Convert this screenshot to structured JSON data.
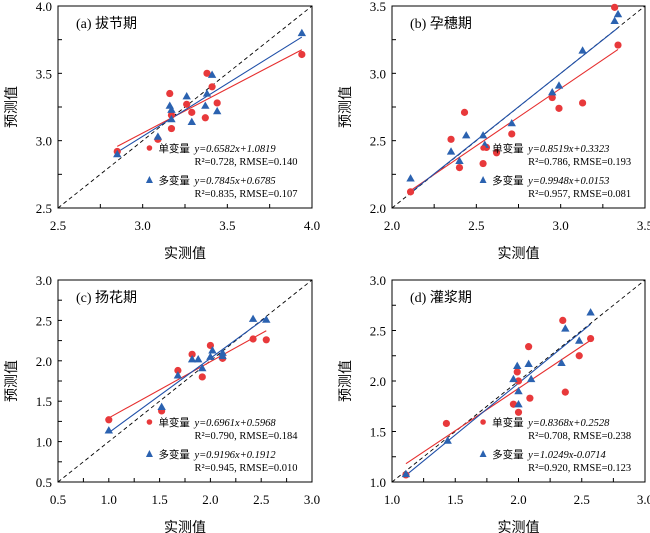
{
  "colors": {
    "single": "#e8393b",
    "multi": "#2b62b0",
    "identity": "#000000",
    "single_line": "#e62e2e",
    "multi_line": "#1f4fa8"
  },
  "chart_data": [
    {
      "type": "scatter",
      "title": "(a) 拔节期",
      "xlabel": "实测值",
      "ylabel": "预测值",
      "xlim": [
        2.5,
        4.0
      ],
      "ylim": [
        2.5,
        4.0
      ],
      "xticks": [
        "2.5",
        "3.0",
        "3.5",
        "4.0"
      ],
      "xtick_values": [
        2.5,
        3.0,
        3.5,
        4.0
      ],
      "yticks": [
        "2.5",
        "3.0",
        "3.5",
        "4.0"
      ],
      "ytick_values": [
        2.5,
        3.0,
        3.5,
        4.0
      ],
      "minor_step": 0.25,
      "legend_position": "bottom-right",
      "series": [
        {
          "name": "单变量",
          "marker": "circle",
          "equation": "y=0.6582x+1.0819",
          "stats": "R²=0.728, RMSE=0.140",
          "slope": 0.6582,
          "intercept": 1.0819,
          "fit_range": [
            2.85,
            3.94
          ],
          "points": [
            [
              2.85,
              2.92
            ],
            [
              3.09,
              3.01
            ],
            [
              3.16,
              3.35
            ],
            [
              3.17,
              3.19
            ],
            [
              3.17,
              3.09
            ],
            [
              3.26,
              3.27
            ],
            [
              3.29,
              3.21
            ],
            [
              3.37,
              3.17
            ],
            [
              3.38,
              3.5
            ],
            [
              3.41,
              3.4
            ],
            [
              3.44,
              3.28
            ],
            [
              3.94,
              3.64
            ]
          ]
        },
        {
          "name": "多变量",
          "marker": "triangle",
          "equation": "y=0.7845x+0.6785",
          "stats": "R²=0.835, RMSE=0.107",
          "slope": 0.7845,
          "intercept": 0.6785,
          "fit_range": [
            2.85,
            3.94
          ],
          "points": [
            [
              2.85,
              2.9
            ],
            [
              3.09,
              3.03
            ],
            [
              3.16,
              3.26
            ],
            [
              3.17,
              3.23
            ],
            [
              3.17,
              3.16
            ],
            [
              3.26,
              3.33
            ],
            [
              3.29,
              3.14
            ],
            [
              3.37,
              3.26
            ],
            [
              3.38,
              3.35
            ],
            [
              3.41,
              3.49
            ],
            [
              3.44,
              3.22
            ],
            [
              3.94,
              3.8
            ]
          ]
        }
      ]
    },
    {
      "type": "scatter",
      "title": "(b) 孕穗期",
      "xlabel": "实测值",
      "ylabel": "预测值",
      "xlim": [
        2.0,
        3.5
      ],
      "ylim": [
        2.0,
        3.5
      ],
      "xticks": [
        "2.0",
        "2.5",
        "3.0",
        "3.5"
      ],
      "xtick_values": [
        2.0,
        2.5,
        3.0,
        3.5
      ],
      "yticks": [
        "2.0",
        "2.5",
        "3.0",
        "3.5"
      ],
      "ytick_values": [
        2.0,
        2.5,
        3.0,
        3.5
      ],
      "minor_step": 0.25,
      "legend_position": "bottom-right",
      "series": [
        {
          "name": "单变量",
          "marker": "circle",
          "equation": "y=0.8519x+0.3323",
          "stats": "R²=0.786, RMSE=0.193",
          "slope": 0.8519,
          "intercept": 0.3323,
          "fit_range": [
            2.11,
            3.34
          ],
          "points": [
            [
              2.11,
              2.12
            ],
            [
              2.35,
              2.51
            ],
            [
              2.4,
              2.3
            ],
            [
              2.43,
              2.71
            ],
            [
              2.54,
              2.33
            ],
            [
              2.56,
              2.45
            ],
            [
              2.62,
              2.41
            ],
            [
              2.71,
              2.55
            ],
            [
              2.95,
              2.82
            ],
            [
              2.99,
              2.74
            ],
            [
              3.13,
              2.78
            ],
            [
              3.32,
              3.49
            ],
            [
              3.34,
              3.21
            ]
          ]
        },
        {
          "name": "多变量",
          "marker": "triangle",
          "equation": "y=0.9948x+0.0153",
          "stats": "R²=0.957, RMSE=0.081",
          "slope": 0.9948,
          "intercept": 0.0153,
          "fit_range": [
            2.11,
            3.34
          ],
          "points": [
            [
              2.11,
              2.22
            ],
            [
              2.35,
              2.42
            ],
            [
              2.4,
              2.35
            ],
            [
              2.44,
              2.54
            ],
            [
              2.54,
              2.54
            ],
            [
              2.55,
              2.47
            ],
            [
              2.71,
              2.63
            ],
            [
              2.95,
              2.86
            ],
            [
              2.99,
              2.91
            ],
            [
              3.13,
              3.17
            ],
            [
              3.32,
              3.39
            ],
            [
              3.34,
              3.44
            ]
          ]
        }
      ]
    },
    {
      "type": "scatter",
      "title": "(c) 扬花期",
      "xlabel": "实测值",
      "ylabel": "预测值",
      "xlim": [
        0.5,
        3.0
      ],
      "ylim": [
        0.5,
        3.0
      ],
      "xticks": [
        "0.5",
        "1.0",
        "1.5",
        "2.0",
        "2.5",
        "3.0"
      ],
      "xtick_values": [
        0.5,
        1.0,
        1.5,
        2.0,
        2.5,
        3.0
      ],
      "yticks": [
        "0.5",
        "1.0",
        "1.5",
        "2.0",
        "2.5",
        "3.0"
      ],
      "ytick_values": [
        0.5,
        1.0,
        1.5,
        2.0,
        2.5,
        3.0
      ],
      "minor_step": 0.25,
      "legend_position": "bottom-right",
      "series": [
        {
          "name": "单变量",
          "marker": "circle",
          "equation": "y=0.6961x+0.5968",
          "stats": "R²=0.790, RMSE=0.184",
          "slope": 0.6961,
          "intercept": 0.5968,
          "fit_range": [
            1.0,
            2.55
          ],
          "points": [
            [
              1.0,
              1.27
            ],
            [
              1.52,
              1.38
            ],
            [
              1.68,
              1.88
            ],
            [
              1.82,
              2.08
            ],
            [
              1.92,
              1.8
            ],
            [
              2.0,
              2.19
            ],
            [
              2.12,
              2.03
            ],
            [
              2.42,
              2.27
            ],
            [
              2.55,
              2.26
            ]
          ]
        },
        {
          "name": "多变量",
          "marker": "triangle",
          "equation": "y=0.9196x+0.1912",
          "stats": "R²=0.945, RMSE=0.010",
          "slope": 0.9196,
          "intercept": 0.1912,
          "fit_range": [
            1.0,
            2.55
          ],
          "points": [
            [
              1.0,
              1.14
            ],
            [
              1.52,
              1.43
            ],
            [
              1.68,
              1.82
            ],
            [
              1.82,
              2.02
            ],
            [
              1.88,
              2.02
            ],
            [
              1.92,
              1.91
            ],
            [
              2.0,
              2.05
            ],
            [
              2.02,
              2.13
            ],
            [
              2.12,
              2.06
            ],
            [
              2.12,
              2.1
            ],
            [
              2.42,
              2.52
            ],
            [
              2.55,
              2.51
            ]
          ]
        }
      ]
    },
    {
      "type": "scatter",
      "title": "(d) 灌浆期",
      "xlabel": "实测值",
      "ylabel": "预测值",
      "xlim": [
        1.0,
        3.0
      ],
      "ylim": [
        1.0,
        3.0
      ],
      "xticks": [
        "1.0",
        "1.5",
        "2.0",
        "2.5",
        "3.0"
      ],
      "xtick_values": [
        1.0,
        1.5,
        2.0,
        2.5,
        3.0
      ],
      "yticks": [
        "1.0",
        "1.5",
        "2.0",
        "2.5",
        "3.0"
      ],
      "ytick_values": [
        1.0,
        1.5,
        2.0,
        2.5,
        3.0
      ],
      "minor_step": 0.25,
      "legend_position": "bottom-right",
      "series": [
        {
          "name": "单变量",
          "marker": "circle",
          "equation": "y=0.8368x+0.2528",
          "stats": "R²=0.708, RMSE=0.238",
          "slope": 0.8368,
          "intercept": 0.2528,
          "fit_range": [
            1.11,
            2.57
          ],
          "points": [
            [
              1.11,
              1.07
            ],
            [
              1.43,
              1.58
            ],
            [
              1.96,
              1.77
            ],
            [
              1.99,
              2.09
            ],
            [
              2.0,
              2.0
            ],
            [
              2.0,
              1.69
            ],
            [
              2.08,
              2.34
            ],
            [
              2.09,
              1.83
            ],
            [
              2.35,
              2.6
            ],
            [
              2.37,
              1.89
            ],
            [
              2.48,
              2.25
            ],
            [
              2.57,
              2.42
            ]
          ]
        },
        {
          "name": "多变量",
          "marker": "triangle",
          "equation": "y=1.0249x-0.0714",
          "stats": "R²=0.920, RMSE=0.123",
          "slope": 1.0249,
          "intercept": -0.0714,
          "fit_range": [
            1.11,
            2.57
          ],
          "points": [
            [
              1.11,
              1.08
            ],
            [
              1.44,
              1.41
            ],
            [
              1.96,
              2.02
            ],
            [
              1.99,
              2.15
            ],
            [
              2.0,
              1.9
            ],
            [
              2.0,
              1.77
            ],
            [
              2.08,
              2.17
            ],
            [
              2.1,
              2.02
            ],
            [
              2.34,
              2.18
            ],
            [
              2.37,
              2.52
            ],
            [
              2.48,
              2.4
            ],
            [
              2.57,
              2.68
            ]
          ]
        }
      ]
    }
  ]
}
